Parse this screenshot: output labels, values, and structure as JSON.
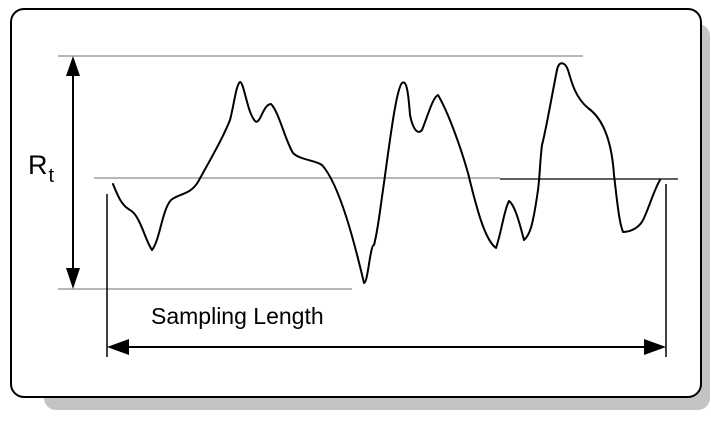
{
  "labels": {
    "rt_main": "R",
    "rt_sub": "t",
    "sampling_length": "Sampling Length"
  },
  "colors": {
    "frame_border": "#000000",
    "frame_shadow": "#c4c4c4",
    "reference_line": "#8c8c8c",
    "profile": "#000000"
  }
}
